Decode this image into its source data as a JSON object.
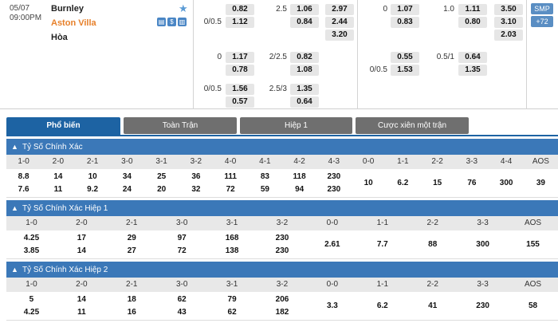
{
  "match": {
    "date": "05/07",
    "time": "09:00PM",
    "home": "Burnley",
    "away": "Aston Villa",
    "draw": "Hòa",
    "smp_label": "SMP",
    "more_markets": "+72"
  },
  "odds": {
    "ft_hdp": [
      {
        "line": "",
        "home": "0.82",
        "away": "",
        "line2": "0/0.5",
        "away_v": "1.12"
      },
      {
        "line": "0",
        "home": "1.17",
        "line2": "",
        "away_v": "0.78"
      },
      {
        "line": "0/0.5",
        "home": "1.56",
        "line2": "",
        "away_v": "0.57"
      }
    ],
    "ft_ou": [
      {
        "line": "2.5",
        "over": "1.06",
        "under": "0.84"
      },
      {
        "line": "2/2.5",
        "over": "0.82",
        "under": "1.08"
      },
      {
        "line": "2.5/3",
        "over": "1.35",
        "under": "0.64"
      }
    ],
    "ft_1x2": [
      "2.97",
      "2.44",
      "3.20"
    ],
    "h1_hdp": [
      {
        "line": "0",
        "home": "1.07",
        "away": "0.83"
      },
      {
        "line": "0/0.5",
        "home": "0.55",
        "away": "1.53"
      }
    ],
    "h1_ou": [
      {
        "line": "1.0",
        "over": "1.11",
        "under": "0.80"
      },
      {
        "line": "0.5/1",
        "over": "0.64",
        "under": "1.35"
      }
    ],
    "h1_1x2": [
      "3.50",
      "3.10",
      "2.03"
    ]
  },
  "tabs": [
    "Phổ biến",
    "Toàn Trận",
    "Hiệp 1",
    "Cược xiên một trận"
  ],
  "sections": [
    {
      "title": "Tỷ Số Chính Xác",
      "headers": [
        "1-0",
        "2-0",
        "2-1",
        "3-0",
        "3-1",
        "3-2",
        "4-0",
        "4-1",
        "4-2",
        "4-3",
        "0-0",
        "1-1",
        "2-2",
        "3-3",
        "4-4",
        "AOS"
      ],
      "home": [
        "8.8",
        "14",
        "10",
        "34",
        "25",
        "36",
        "111",
        "83",
        "118",
        "230"
      ],
      "away": [
        "7.6",
        "11",
        "9.2",
        "24",
        "20",
        "32",
        "72",
        "59",
        "94",
        "230"
      ],
      "draws": [
        "10",
        "6.2",
        "15",
        "76",
        "300",
        "39"
      ]
    },
    {
      "title": "Tỷ Số Chính Xác Hiệp 1",
      "headers": [
        "1-0",
        "2-0",
        "2-1",
        "3-0",
        "3-1",
        "3-2",
        "0-0",
        "1-1",
        "2-2",
        "3-3",
        "AOS"
      ],
      "home": [
        "4.25",
        "17",
        "29",
        "97",
        "168",
        "230"
      ],
      "away": [
        "3.85",
        "14",
        "27",
        "72",
        "138",
        "230"
      ],
      "draws": [
        "2.61",
        "7.7",
        "88",
        "300",
        "155"
      ]
    },
    {
      "title": "Tỷ Số Chính Xác Hiệp 2",
      "headers": [
        "1-0",
        "2-0",
        "2-1",
        "3-0",
        "3-1",
        "3-2",
        "0-0",
        "1-1",
        "2-2",
        "3-3",
        "AOS"
      ],
      "home": [
        "5",
        "14",
        "18",
        "62",
        "79",
        "206"
      ],
      "away": [
        "4.25",
        "11",
        "16",
        "43",
        "62",
        "182"
      ],
      "draws": [
        "3.3",
        "6.2",
        "41",
        "230",
        "58"
      ]
    }
  ]
}
